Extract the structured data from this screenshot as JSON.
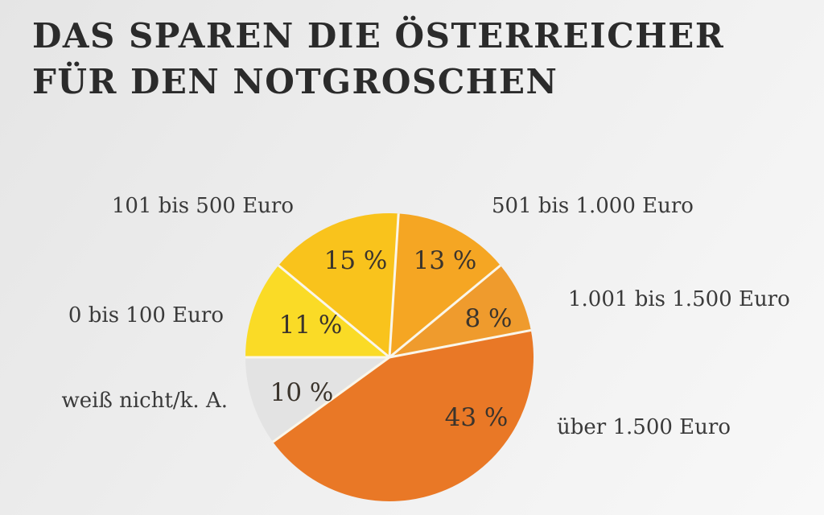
{
  "title": {
    "line1": "DAS SPAREN DIE ÖSTERREICHER",
    "line2": "FÜR DEN NOTGROSCHEN"
  },
  "colors": {
    "background_start": "#e5e5e5",
    "background_end": "#f8f8f8",
    "title_text": "#2b2b2b",
    "label_text": "#3a3a3a",
    "percent_text": "#3b342c",
    "divider": "#faf6ea"
  },
  "chart_data": {
    "type": "pie",
    "title": "Das sparen die Österreicher für den Notgroschen",
    "start_angle_deg": 3.6,
    "clockwise": true,
    "total": 100,
    "unit": "%",
    "legend_position": "around-pie",
    "slices": [
      {
        "label": "501 bis 1.000 Euro",
        "value": 13,
        "display": "13 %",
        "color": "#F5A623"
      },
      {
        "label": "1.001 bis 1.500 Euro",
        "value": 8,
        "display": "8 %",
        "color": "#EF9B2D"
      },
      {
        "label": "über 1.500 Euro",
        "value": 43,
        "display": "43 %",
        "color": "#E97826"
      },
      {
        "label": "weiß nicht/k. A.",
        "value": 10,
        "display": "10 %",
        "color": "#E3E3E3"
      },
      {
        "label": "0 bis 100 Euro",
        "value": 11,
        "display": "11 %",
        "color": "#FADB26"
      },
      {
        "label": "101 bis 500 Euro",
        "value": 15,
        "display": "15 %",
        "color": "#F9C31C"
      }
    ]
  }
}
